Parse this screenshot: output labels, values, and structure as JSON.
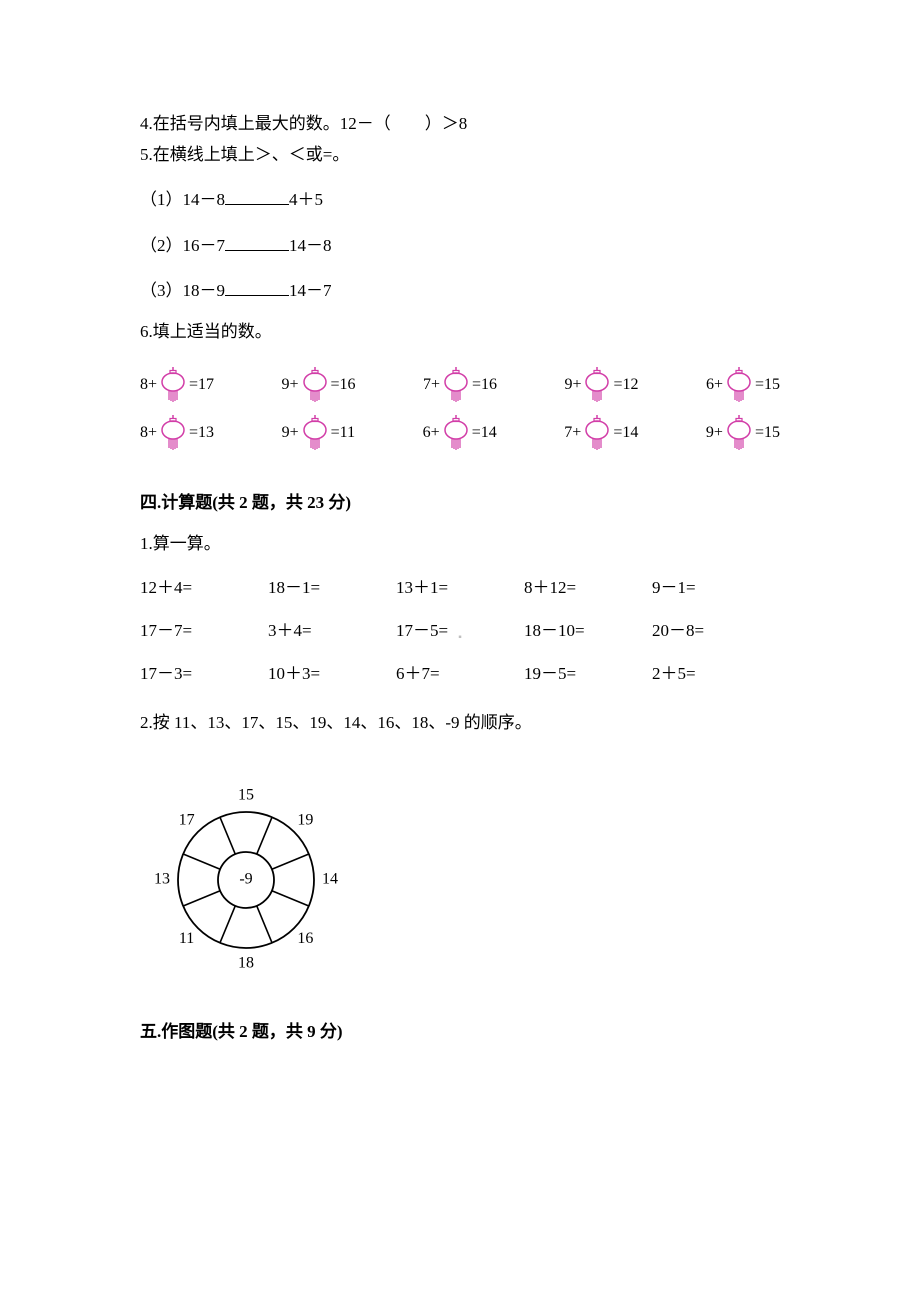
{
  "q4": "4.在括号内填上最大的数。12－（　　）＞8",
  "q5": {
    "stem": "5.在横线上填上＞、＜或=。",
    "items": [
      {
        "label": "（1）14－8",
        "tail": "4＋5"
      },
      {
        "label": "（2）16－7",
        "tail": "14－8"
      },
      {
        "label": "（3）18－9",
        "tail": "14－7"
      }
    ]
  },
  "q6": {
    "stem": "6.填上适当的数。",
    "lantern_color": "#d23ea8",
    "lantern_stroke": "#d23ea8",
    "row1": [
      {
        "pre": "8+",
        "post": "=17"
      },
      {
        "pre": "9+",
        "post": "=16"
      },
      {
        "pre": "7+",
        "post": "=16"
      },
      {
        "pre": "9+",
        "post": "=12"
      },
      {
        "pre": "6+",
        "post": "=15"
      }
    ],
    "row2": [
      {
        "pre": "8+",
        "post": "=13"
      },
      {
        "pre": "9+",
        "post": "=11"
      },
      {
        "pre": "6+",
        "post": "=14"
      },
      {
        "pre": "7+",
        "post": "=14"
      },
      {
        "pre": "9+",
        "post": "=15"
      }
    ]
  },
  "sec4": {
    "title": "四.计算题(共 2 题，共 23 分)",
    "q1_stem": "1.算一算。",
    "calc_rows": [
      [
        "12＋4=",
        "18－1=",
        "13＋1=",
        "8＋12=",
        "9－1="
      ],
      [
        "17－7=",
        "3＋4=",
        "17－5=",
        "18－10=",
        "20－8="
      ],
      [
        "17－3=",
        "10＋3=",
        "6＋7=",
        "19－5=",
        "2＋5="
      ]
    ],
    "q2_stem": "2.按 11、13、17、15、19、14、16、18、-9 的顺序。",
    "wheel": {
      "center_label": "-9",
      "outer_labels": [
        "15",
        "19",
        "14",
        "16",
        "18",
        "11",
        "13",
        "17"
      ],
      "stroke": "#000000"
    }
  },
  "sec5": {
    "title": "五.作图题(共 2 题，共 9 分)"
  },
  "center_mark": "▪"
}
